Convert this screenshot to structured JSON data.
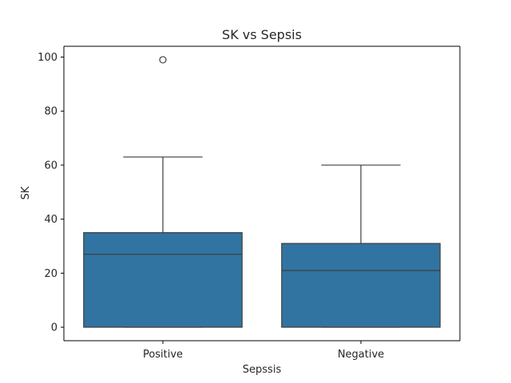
{
  "chart_data": {
    "type": "box",
    "title": "SK vs Sepsis",
    "xlabel": "Sepssis",
    "ylabel": "SK",
    "ylim": [
      -5,
      104
    ],
    "yticks": [
      0,
      20,
      40,
      60,
      80,
      100
    ],
    "yticklabels": [
      "0",
      "20",
      "40",
      "60",
      "80",
      "100"
    ],
    "categories": [
      "Positive",
      "Negative"
    ],
    "boxes": [
      {
        "category": "Positive",
        "whisker_low": 0,
        "q1": 0,
        "median": 27,
        "q3": 35,
        "whisker_high": 63,
        "outliers": [
          99
        ]
      },
      {
        "category": "Negative",
        "whisker_low": 0,
        "q1": 0,
        "median": 21,
        "q3": 31,
        "whisker_high": 60,
        "outliers": []
      }
    ],
    "box_color": "#3274a1",
    "line_color": "#3d3d3d",
    "grid": false,
    "legend": "none"
  }
}
